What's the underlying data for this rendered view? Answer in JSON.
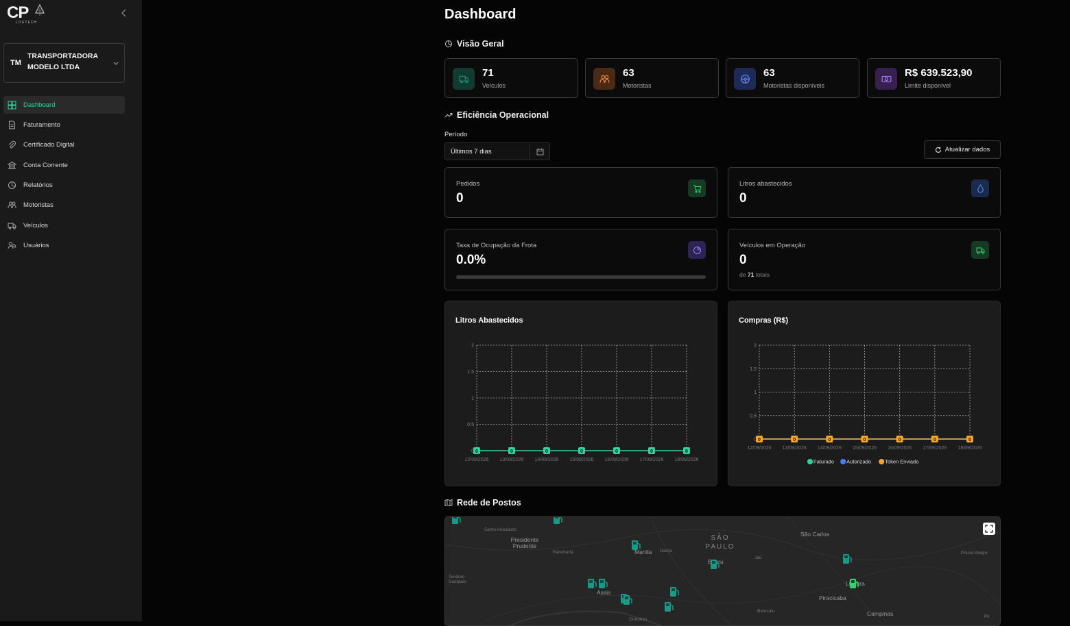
{
  "brand": {
    "logo_text": "CP",
    "logo_sub": "LOGTECH"
  },
  "company": {
    "initials": "TM",
    "name": "TRANSPORTADORA MODELO LTDA"
  },
  "nav": [
    {
      "label": "Dashboard",
      "icon": "grid-icon",
      "active": true
    },
    {
      "label": "Faturamento",
      "icon": "invoice-icon"
    },
    {
      "label": "Certificado Digital",
      "icon": "paperclip-icon"
    },
    {
      "label": "Conta Corrente",
      "icon": "bank-icon"
    },
    {
      "label": "Relatórios",
      "icon": "chart-circle-icon"
    },
    {
      "label": "Motoristas",
      "icon": "users-icon"
    },
    {
      "label": "Veículos",
      "icon": "truck-icon"
    },
    {
      "label": "Usuários",
      "icon": "user-search-icon"
    }
  ],
  "page": {
    "title": "Dashboard"
  },
  "overview": {
    "title": "Visão Geral",
    "stats": [
      {
        "value": "71",
        "label": "Veículos",
        "icon": "truck-icon",
        "color": "#1e8f6e",
        "bg": "#123a30"
      },
      {
        "value": "63",
        "label": "Motoristas",
        "icon": "users-icon",
        "color": "#f08a3c",
        "bg": "#4a2a14"
      },
      {
        "value": "63",
        "label": "Motoristas disponíveis",
        "icon": "steering-wheel-icon",
        "color": "#6a8dff",
        "bg": "#1c2a55"
      },
      {
        "value": "R$ 639.523,90",
        "label": "Limite disponível",
        "icon": "cash-icon",
        "color": "#b07cff",
        "bg": "#36204e"
      }
    ]
  },
  "efficiency": {
    "title": "Eficiência Operacional",
    "period_label": "Período",
    "period_value": "Últimos 7 dias",
    "refresh_label": "Atualizar dados",
    "kpis": [
      {
        "title": "Pedidos",
        "value": "0",
        "icon": "cart-icon",
        "color": "#2dd46a",
        "bg": "#163a24"
      },
      {
        "title": "Litros abastecidos",
        "value": "0",
        "icon": "droplet-icon",
        "color": "#5f9bff",
        "bg": "#1a2b4d"
      },
      {
        "title": "Taxa de Ocupação da Frota",
        "value": "0.0%",
        "icon": "pie-icon",
        "color": "#9b7cff",
        "bg": "#2d2454",
        "progress": 0.0
      },
      {
        "title": "Veículos em Operação",
        "value": "0",
        "icon": "truck-icon",
        "color": "#2dd46a",
        "bg": "#163a24",
        "sub_prefix": "de",
        "sub_value": "71",
        "sub_suffix": "totais"
      }
    ]
  },
  "chart_data": [
    {
      "type": "line",
      "title": "Litros Abastecidos",
      "x": [
        "12/09/2026",
        "13/09/2026",
        "14/09/2026",
        "15/09/2026",
        "16/09/2026",
        "17/09/2026",
        "18/09/2026"
      ],
      "yticks": [
        "0",
        "0.5",
        "1",
        "1.5",
        "2"
      ],
      "ylim": [
        0,
        2
      ],
      "grid": true,
      "series": [
        {
          "values": [
            0,
            0,
            0,
            0,
            0,
            0,
            0
          ],
          "color": "#2dd4a0",
          "data_labels": [
            "0",
            "0",
            "0",
            "0",
            "0",
            "0",
            "0"
          ]
        }
      ]
    },
    {
      "type": "line",
      "title": "Compras (R$)",
      "x": [
        "12/09/2026",
        "13/09/2026",
        "14/09/2026",
        "15/09/2026",
        "16/09/2026",
        "17/09/2026",
        "18/09/2026"
      ],
      "yticks": [
        "0",
        "0.5",
        "1",
        "1.5",
        "2"
      ],
      "ylim": [
        0,
        2
      ],
      "grid": true,
      "legend_position": "bottom",
      "series": [
        {
          "name": "Faturado",
          "values": [
            0,
            0,
            0,
            0,
            0,
            0,
            0
          ],
          "color": "#2dd4a0"
        },
        {
          "name": "Autorizado",
          "values": [
            0,
            0,
            0,
            0,
            0,
            0,
            0
          ],
          "color": "#4a7dff"
        },
        {
          "name": "Token Enviado",
          "values": [
            0,
            0,
            0,
            0,
            0,
            0,
            0
          ],
          "color": "#f5a623",
          "data_labels": [
            "0",
            "0",
            "0",
            "0",
            "0",
            "0",
            "0"
          ]
        }
      ]
    }
  ],
  "map": {
    "title": "Rede de Postos",
    "places": [
      {
        "name": "Santo Anastácio",
        "size": "small"
      },
      {
        "name": "Presidente Prudente",
        "size": "normal"
      },
      {
        "name": "Rancharia",
        "size": "small"
      },
      {
        "name": "Marília",
        "size": "normal"
      },
      {
        "name": "Garça",
        "size": "small"
      },
      {
        "name": "SÃO PAULO",
        "size": "big"
      },
      {
        "name": "São Carlos",
        "size": "normal"
      },
      {
        "name": "Pouso Alegre",
        "size": "small"
      },
      {
        "name": "Bauru",
        "size": "normal"
      },
      {
        "name": "Jaú",
        "size": "small"
      },
      {
        "name": "Teodoro Sampaio",
        "size": "small"
      },
      {
        "name": "Assis",
        "size": "normal"
      },
      {
        "name": "Limeira",
        "size": "normal"
      },
      {
        "name": "Piracicaba",
        "size": "normal"
      },
      {
        "name": "Botucatu",
        "size": "small"
      },
      {
        "name": "Campinas",
        "size": "normal"
      },
      {
        "name": "Ourinhos",
        "size": "small"
      },
      {
        "name": "Pir",
        "size": "small"
      }
    ]
  }
}
